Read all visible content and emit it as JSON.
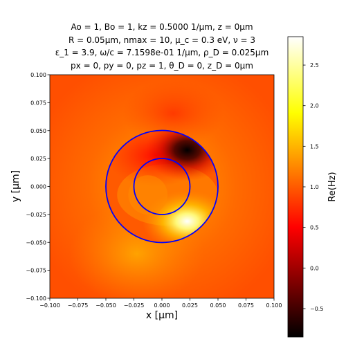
{
  "chart_data": {
    "type": "heatmap",
    "title_lines": [
      "Ao = 1, Bo = 1, kz = 0.5000 1/μm, z = 0μm",
      "R = 0.05μm, nmax = 10, μ_c = 0.3 eV, ν = 3",
      "ε_1 = 3.9, ω/c = 7.1598e-01 1/μm, ρ_D = 0.025μm",
      "px = 0, py = 0, pz = 1, θ_D = 0, z_D = 0μm"
    ],
    "xlabel": "x [μm]",
    "ylabel": "y [μm]",
    "colorbar_label": "Re(Hz)",
    "xlim": [
      -0.1,
      0.1
    ],
    "ylim": [
      -0.1,
      0.1
    ],
    "x_ticks": [
      "−0.100",
      "−0.075",
      "−0.050",
      "−0.025",
      "0.000",
      "0.025",
      "0.050",
      "0.075",
      "0.100"
    ],
    "y_ticks": [
      "0.100",
      "0.075",
      "0.050",
      "0.025",
      "0.000",
      "−0.025",
      "−0.050",
      "−0.075",
      "−0.100"
    ],
    "x_tick_values": [
      -0.1,
      -0.075,
      -0.05,
      -0.025,
      0,
      0.025,
      0.05,
      0.075,
      0.1
    ],
    "y_tick_values": [
      0.1,
      0.075,
      0.05,
      0.025,
      0,
      -0.025,
      -0.05,
      -0.075,
      -0.1
    ],
    "colorbar_range": [
      -0.85,
      2.85
    ],
    "colorbar_ticks": [
      "−0.5",
      "0.0",
      "0.5",
      "1.0",
      "1.5",
      "2.0",
      "2.5"
    ],
    "colorbar_tick_values": [
      -0.5,
      0,
      0.5,
      1.0,
      1.5,
      2.0,
      2.5
    ],
    "colormap": "hot",
    "background_value": 1.0,
    "circles": [
      {
        "center": [
          0,
          0
        ],
        "radius": 0.05,
        "color": "#0000ff"
      },
      {
        "center": [
          0,
          0
        ],
        "radius": 0.025,
        "color": "#0000ff"
      }
    ],
    "grid": false
  }
}
